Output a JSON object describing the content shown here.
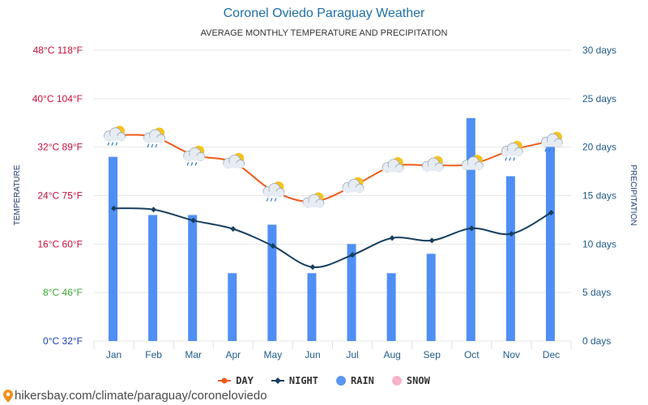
{
  "header": {
    "title": "Coronel Oviedo Paraguay Weather",
    "subtitle": "AVERAGE MONTHLY TEMPERATURE AND PRECIPITATION"
  },
  "chart_data": {
    "type": "bar+line",
    "categories": [
      "Jan",
      "Feb",
      "Mar",
      "Apr",
      "May",
      "Jun",
      "Jul",
      "Aug",
      "Sep",
      "Oct",
      "Nov",
      "Dec"
    ],
    "series": [
      {
        "name": "DAY",
        "type": "line",
        "axis": "left",
        "unit": "°C",
        "color": "#f05a1a",
        "values": [
          34,
          33.7,
          30.7,
          29.5,
          24.8,
          23,
          25.5,
          28.8,
          29,
          29.2,
          31.5,
          33
        ]
      },
      {
        "name": "NIGHT",
        "type": "line",
        "axis": "left",
        "unit": "°C",
        "color": "#173f5f",
        "values": [
          21.9,
          21.7,
          19.9,
          18.5,
          15.7,
          12.2,
          14.2,
          17,
          16.6,
          18.6,
          17.7,
          21.2
        ]
      },
      {
        "name": "RAIN",
        "type": "bar",
        "axis": "right",
        "unit": "days",
        "color": "#4f8ff5",
        "values": [
          19,
          13,
          13,
          7,
          12,
          7,
          10,
          7,
          9,
          23,
          17,
          21
        ]
      },
      {
        "name": "SNOW",
        "type": "bar",
        "axis": "right",
        "unit": "days",
        "color": "#f7b3c8",
        "values": [
          0,
          0,
          0,
          0,
          0,
          0,
          0,
          0,
          0,
          0,
          0,
          0
        ]
      }
    ],
    "weather_icons": [
      "partly-cloudy-rain",
      "partly-cloudy-rain",
      "partly-cloudy-rain",
      "partly-cloudy",
      "partly-cloudy-rain",
      "partly-cloudy",
      "partly-cloudy",
      "partly-cloudy",
      "partly-cloudy",
      "partly-cloudy",
      "partly-cloudy-rain",
      "partly-cloudy-rain"
    ],
    "y_left": {
      "label": "TEMPERATURE",
      "ylim": [
        0,
        48
      ],
      "ticks": [
        {
          "value": 0,
          "label": "0°C 32°F",
          "color": "#1a3fb8"
        },
        {
          "value": 8,
          "label": "8°C 46°F",
          "color": "#3da832"
        },
        {
          "value": 16,
          "label": "16°C 60°F",
          "color": "#c8103c"
        },
        {
          "value": 24,
          "label": "24°C 75°F",
          "color": "#c8103c"
        },
        {
          "value": 32,
          "label": "32°C 89°F",
          "color": "#c8103c"
        },
        {
          "value": 40,
          "label": "40°C 104°F",
          "color": "#c8103c"
        },
        {
          "value": 48,
          "label": "48°C 118°F",
          "color": "#c8103c"
        }
      ]
    },
    "y_right": {
      "label": "PRECIPITATION",
      "ylim": [
        0,
        30
      ],
      "ticks": [
        {
          "value": 0,
          "label": "0 days"
        },
        {
          "value": 5,
          "label": "5 days"
        },
        {
          "value": 10,
          "label": "10 days"
        },
        {
          "value": 15,
          "label": "15 days"
        },
        {
          "value": 20,
          "label": "20 days"
        },
        {
          "value": 25,
          "label": "25 days"
        },
        {
          "value": 30,
          "label": "30 days"
        }
      ]
    },
    "grid": true,
    "legend_position": "bottom-center"
  },
  "legend": {
    "day": "DAY",
    "night": "NIGHT",
    "rain": "RAIN",
    "snow": "SNOW",
    "day_color": "#f05a1a",
    "night_color": "#173f5f",
    "rain_color": "#5b97f0",
    "snow_color": "#f7b3c8"
  },
  "footer": {
    "url": "hikersbay.com/climate/paraguay/coroneloviedo",
    "icon": "location-pin-icon"
  }
}
